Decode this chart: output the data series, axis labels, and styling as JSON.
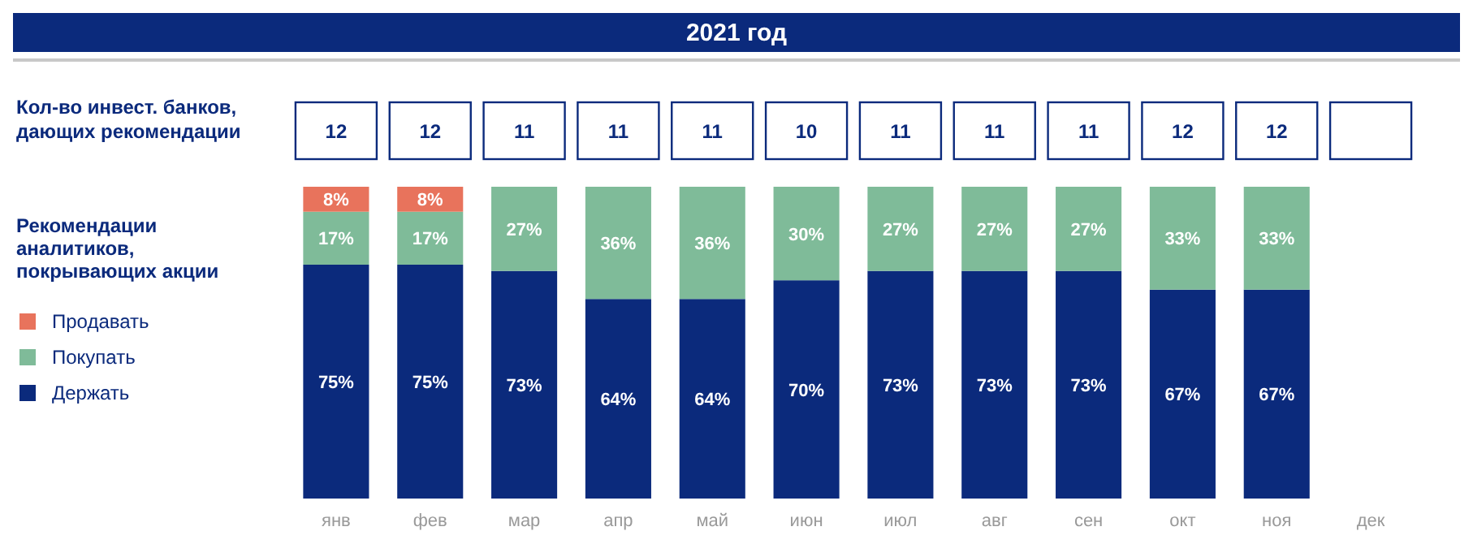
{
  "chart_data": {
    "type": "bar",
    "stacked": true,
    "title": "2021 год",
    "ylabel": "Рекомендации аналитиков, покрывающих акции",
    "ylim": [
      0,
      100
    ],
    "tick_labels": "x",
    "legend": "left",
    "categories": [
      "янв",
      "фев",
      "мар",
      "апр",
      "май",
      "июн",
      "июл",
      "авг",
      "сен",
      "окт",
      "ноя",
      "дек"
    ],
    "series": [
      {
        "name": "Держать",
        "color": "#0b2a7c",
        "values": [
          75,
          75,
          73,
          64,
          64,
          70,
          73,
          73,
          73,
          67,
          67,
          null
        ],
        "value_labels": [
          "75%",
          "75%",
          "73%",
          "64%",
          "64%",
          "70%",
          "73%",
          "73%",
          "73%",
          "67%",
          "67%",
          null
        ]
      },
      {
        "name": "Покупать",
        "color": "#7fbb99",
        "values": [
          17,
          17,
          27,
          36,
          36,
          30,
          27,
          27,
          27,
          33,
          33,
          null
        ],
        "value_labels": [
          "17%",
          "17%",
          "27%",
          "36%",
          "36%",
          "30%",
          "27%",
          "27%",
          "27%",
          "33%",
          "33%",
          null
        ]
      },
      {
        "name": "Продавать",
        "color": "#e8735c",
        "values": [
          8,
          8,
          null,
          null,
          null,
          null,
          null,
          null,
          null,
          null,
          null,
          null
        ],
        "value_labels": [
          "8%",
          "8%",
          null,
          null,
          null,
          null,
          null,
          null,
          null,
          null,
          null,
          null
        ]
      }
    ],
    "annotations": [
      "Кол-во инвест. банков, дающих рекомендации",
      "12",
      "12",
      "11",
      "11",
      "11",
      "10",
      "11",
      "11",
      "11",
      "12",
      "12"
    ]
  }
}
